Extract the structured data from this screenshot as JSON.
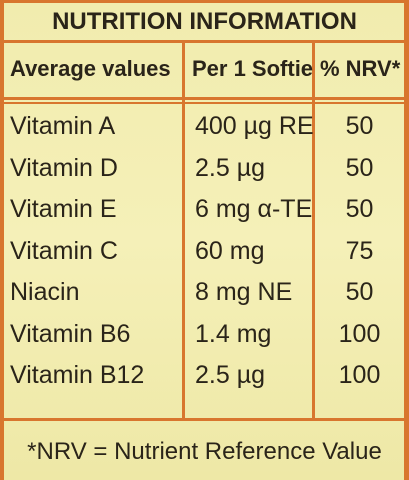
{
  "header": {
    "title": "NUTRITION INFORMATION"
  },
  "table": {
    "columns": [
      "Average values",
      "Per 1 Softie",
      "% NRV*"
    ],
    "rows": [
      [
        "Vitamin A",
        "400 µg RE",
        "50"
      ],
      [
        "Vitamin D",
        "2.5 µg",
        "50"
      ],
      [
        "Vitamin E",
        "6 mg α-TE",
        "50"
      ],
      [
        "Vitamin C",
        "60 mg",
        "75"
      ],
      [
        "Niacin",
        "8 mg NE",
        "50"
      ],
      [
        "Vitamin B6",
        "1.4 mg",
        "100"
      ],
      [
        "Vitamin B12",
        "2.5 µg",
        "100"
      ]
    ]
  },
  "footer": "*NRV = Nutrient Reference Value"
}
